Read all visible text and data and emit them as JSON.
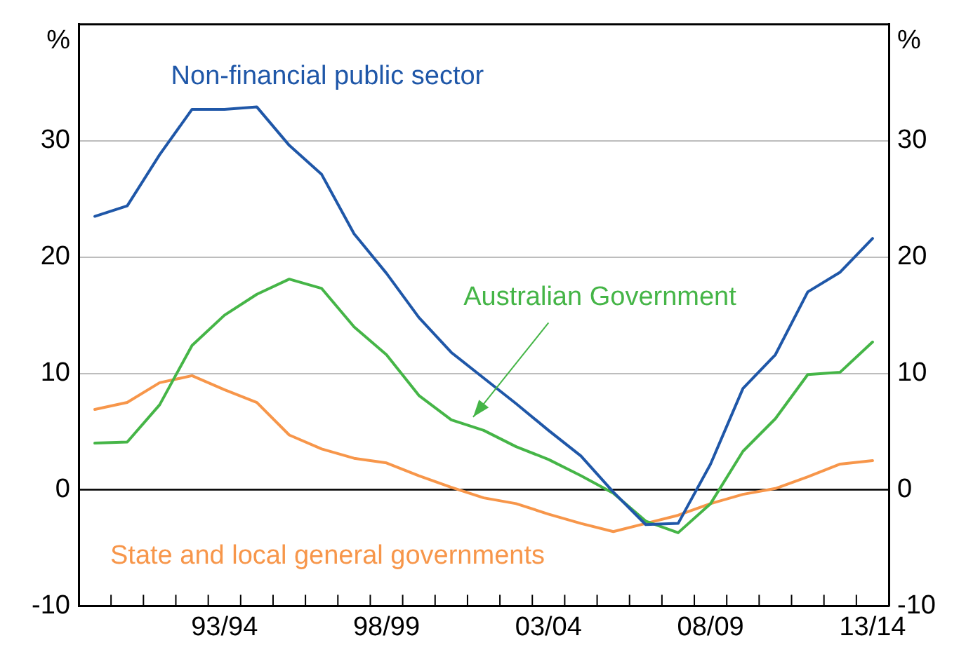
{
  "chart_data": {
    "type": "line",
    "ylabel": "%",
    "y2label": "%",
    "categories": [
      null,
      null,
      null,
      null,
      "93/94",
      null,
      null,
      null,
      null,
      "98/99",
      null,
      null,
      null,
      null,
      "03/04",
      null,
      null,
      null,
      null,
      "08/09",
      null,
      null,
      null,
      null,
      "13/14"
    ],
    "series": [
      {
        "name": "Non-financial public sector",
        "color": "#1f57a8",
        "values": [
          23.5,
          24.4,
          28.8,
          32.7,
          32.7,
          32.9,
          29.6,
          27.1,
          22.0,
          18.6,
          14.8,
          11.8,
          9.6,
          7.4,
          5.1,
          2.9,
          -0.2,
          -3.0,
          -2.9,
          2.2,
          8.7,
          11.6,
          17.0,
          18.7,
          21.6
        ]
      },
      {
        "name": "Australian Government",
        "color": "#45b547",
        "values": [
          4.0,
          4.1,
          7.3,
          12.4,
          15.0,
          16.8,
          18.1,
          17.3,
          14.0,
          11.6,
          8.1,
          6.0,
          5.1,
          3.7,
          2.6,
          1.2,
          -0.3,
          -2.7,
          -3.7,
          -1.2,
          3.3,
          6.1,
          9.9,
          10.1,
          12.7
        ]
      },
      {
        "name": "State and local general governments",
        "color": "#f7964a",
        "values": [
          6.9,
          7.5,
          9.2,
          9.8,
          8.6,
          7.5,
          4.7,
          3.5,
          2.7,
          2.3,
          1.2,
          0.2,
          -0.7,
          -1.2,
          -2.1,
          -2.9,
          -3.6,
          -2.9,
          -2.2,
          -1.2,
          -0.4,
          0.1,
          1.1,
          2.2,
          2.5
        ]
      }
    ],
    "ylim": [
      -10,
      40
    ],
    "yticks": [
      -10,
      0,
      10,
      20,
      30
    ],
    "y2lim": [
      -10,
      40
    ],
    "y2ticks": [
      -10,
      0,
      10,
      20,
      30
    ],
    "ref_lines": [
      {
        "axis": "y",
        "value": 0,
        "color": "#000000"
      }
    ],
    "grid": "y",
    "legend": false,
    "marker": "none",
    "line_style": "solid"
  }
}
